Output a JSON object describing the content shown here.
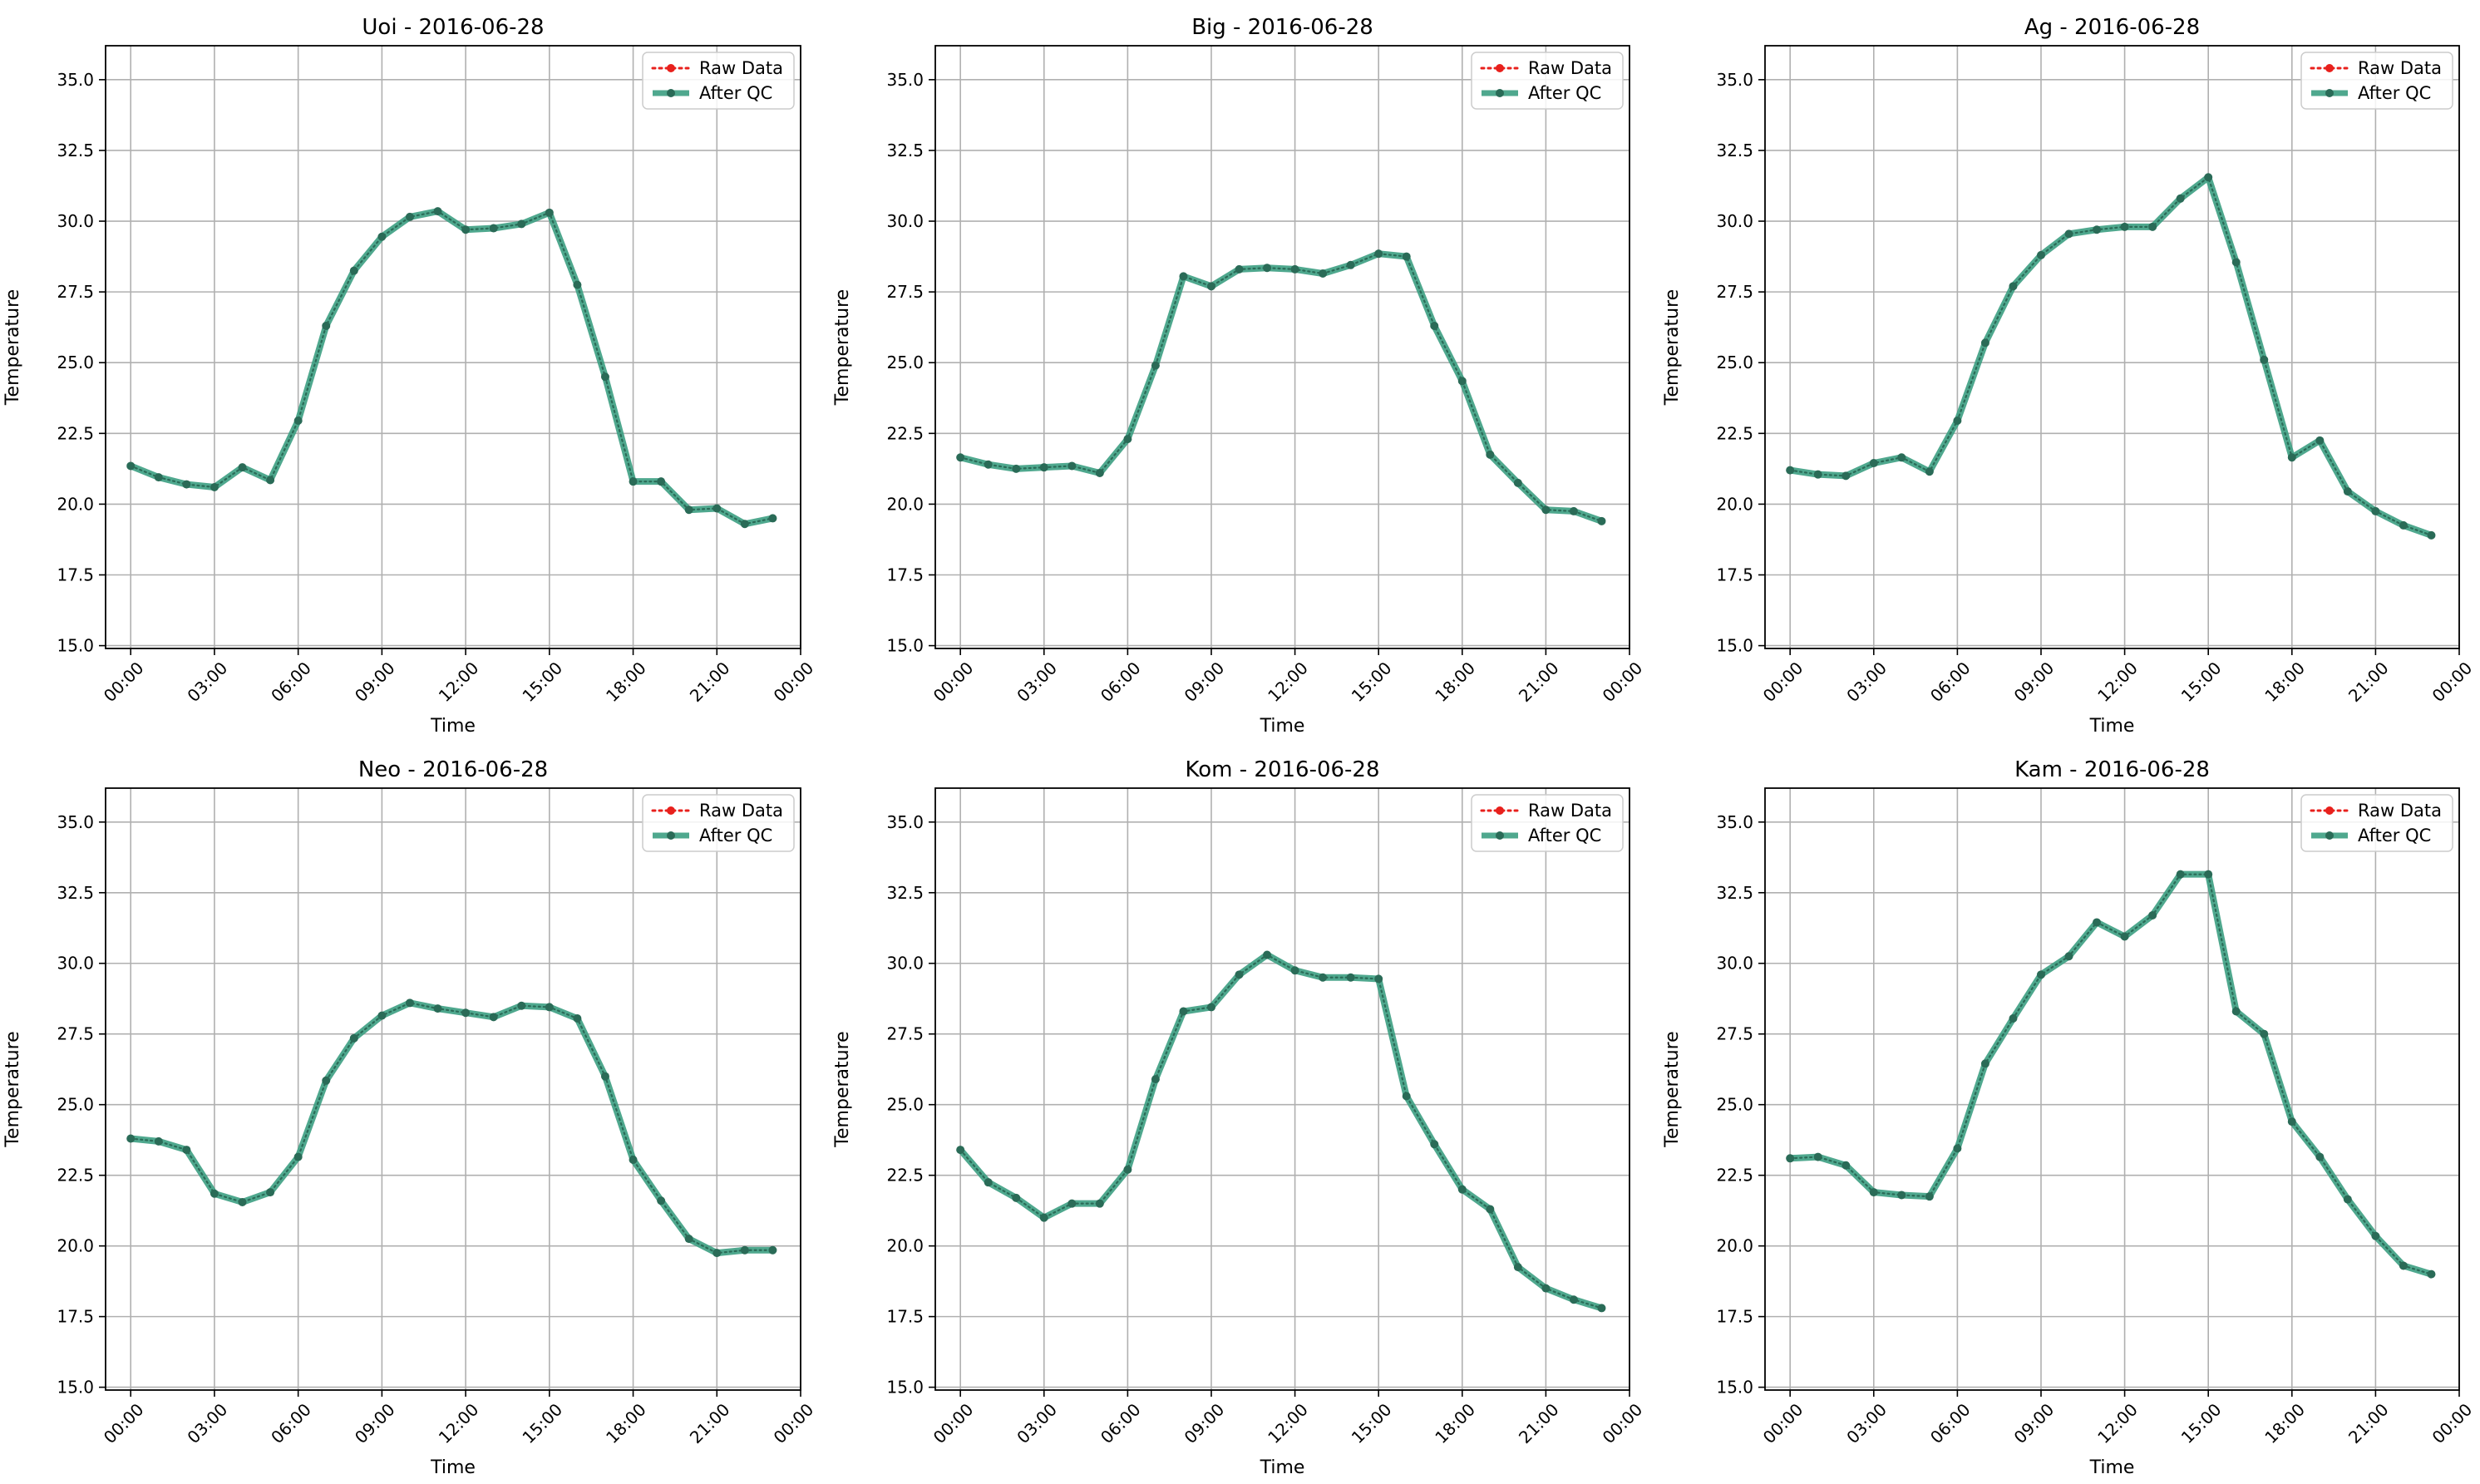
{
  "figure": {
    "subplot_titles": [
      "Uoi - 2016-06-28",
      "Big - 2016-06-28",
      "Ag - 2016-06-28",
      "Neo - 2016-06-28",
      "Kom - 2016-06-28",
      "Kam - 2016-06-28"
    ]
  },
  "colors": {
    "raw": "#e8201c",
    "qc": "#3c9e82",
    "qc_marker": "#2a6b57",
    "grid": "#b0b0b0"
  },
  "chart_data": [
    {
      "type": "line",
      "title": "Uoi - 2016-06-28",
      "xlabel": "Time",
      "ylabel": "Temperature",
      "xlim": [
        -0.9,
        24.0
      ],
      "ylim": [
        14.9,
        36.2
      ],
      "x_ticks": [
        "00:00",
        "03:00",
        "06:00",
        "09:00",
        "12:00",
        "15:00",
        "18:00",
        "21:00",
        "00:00"
      ],
      "y_ticks": [
        "15.0",
        "17.5",
        "20.0",
        "22.5",
        "25.0",
        "27.5",
        "30.0",
        "32.5",
        "35.0"
      ],
      "grid": true,
      "legend": "top-right",
      "x": [
        0,
        1,
        2,
        3,
        4,
        5,
        6,
        7,
        8,
        9,
        10,
        11,
        12,
        13,
        14,
        15,
        16,
        17,
        18,
        19,
        20,
        21,
        22,
        23
      ],
      "series": [
        {
          "name": "Raw Data",
          "style": "dotted",
          "values": [
            21.35,
            20.95,
            20.7,
            20.6,
            21.3,
            20.85,
            22.95,
            26.3,
            28.25,
            29.45,
            30.15,
            30.35,
            29.7,
            29.75,
            29.9,
            30.3,
            27.75,
            24.5,
            20.8,
            20.8,
            19.8,
            19.85,
            19.3,
            19.5
          ]
        },
        {
          "name": "After QC",
          "style": "solid",
          "values": [
            21.35,
            20.95,
            20.7,
            20.6,
            21.3,
            20.85,
            22.95,
            26.3,
            28.25,
            29.45,
            30.15,
            30.35,
            29.7,
            29.75,
            29.9,
            30.3,
            27.75,
            24.5,
            20.8,
            20.8,
            19.8,
            19.85,
            19.3,
            19.5
          ]
        }
      ]
    },
    {
      "type": "line",
      "title": "Big - 2016-06-28",
      "xlabel": "Time",
      "ylabel": "Temperature",
      "xlim": [
        -0.9,
        24.0
      ],
      "ylim": [
        14.9,
        36.2
      ],
      "x_ticks": [
        "00:00",
        "03:00",
        "06:00",
        "09:00",
        "12:00",
        "15:00",
        "18:00",
        "21:00",
        "00:00"
      ],
      "y_ticks": [
        "15.0",
        "17.5",
        "20.0",
        "22.5",
        "25.0",
        "27.5",
        "30.0",
        "32.5",
        "35.0"
      ],
      "grid": true,
      "legend": "top-right",
      "x": [
        0,
        1,
        2,
        3,
        4,
        5,
        6,
        7,
        8,
        9,
        10,
        11,
        12,
        13,
        14,
        15,
        16,
        17,
        18,
        19,
        20,
        21,
        22,
        23
      ],
      "series": [
        {
          "name": "Raw Data",
          "style": "dotted",
          "values": [
            21.65,
            21.4,
            21.25,
            21.3,
            21.35,
            21.1,
            22.3,
            24.9,
            28.05,
            27.7,
            28.3,
            28.35,
            28.3,
            28.15,
            28.45,
            28.85,
            28.75,
            26.3,
            24.35,
            21.75,
            20.75,
            19.8,
            19.75,
            19.4
          ]
        },
        {
          "name": "After QC",
          "style": "solid",
          "values": [
            21.65,
            21.4,
            21.25,
            21.3,
            21.35,
            21.1,
            22.3,
            24.9,
            28.05,
            27.7,
            28.3,
            28.35,
            28.3,
            28.15,
            28.45,
            28.85,
            28.75,
            26.3,
            24.35,
            21.75,
            20.75,
            19.8,
            19.75,
            19.4
          ]
        }
      ]
    },
    {
      "type": "line",
      "title": "Ag - 2016-06-28",
      "xlabel": "Time",
      "ylabel": "Temperature",
      "xlim": [
        -0.9,
        24.0
      ],
      "ylim": [
        14.9,
        36.2
      ],
      "x_ticks": [
        "00:00",
        "03:00",
        "06:00",
        "09:00",
        "12:00",
        "15:00",
        "18:00",
        "21:00",
        "00:00"
      ],
      "y_ticks": [
        "15.0",
        "17.5",
        "20.0",
        "22.5",
        "25.0",
        "27.5",
        "30.0",
        "32.5",
        "35.0"
      ],
      "grid": true,
      "legend": "top-right",
      "x": [
        0,
        1,
        2,
        3,
        4,
        5,
        6,
        7,
        8,
        9,
        10,
        11,
        12,
        13,
        14,
        15,
        16,
        17,
        18,
        19,
        20,
        21,
        22,
        23
      ],
      "series": [
        {
          "name": "Raw Data",
          "style": "dotted",
          "values": [
            21.2,
            21.05,
            21.0,
            21.45,
            21.65,
            21.15,
            22.95,
            25.7,
            27.7,
            28.8,
            29.55,
            29.7,
            29.8,
            29.8,
            30.8,
            31.55,
            28.55,
            25.1,
            21.65,
            22.25,
            20.45,
            19.75,
            19.25,
            18.9
          ]
        },
        {
          "name": "After QC",
          "style": "solid",
          "values": [
            21.2,
            21.05,
            21.0,
            21.45,
            21.65,
            21.15,
            22.95,
            25.7,
            27.7,
            28.8,
            29.55,
            29.7,
            29.8,
            29.8,
            30.8,
            31.55,
            28.55,
            25.1,
            21.65,
            22.25,
            20.45,
            19.75,
            19.25,
            18.9
          ]
        }
      ]
    },
    {
      "type": "line",
      "title": "Neo - 2016-06-28",
      "xlabel": "Time",
      "ylabel": "Temperature",
      "xlim": [
        -0.9,
        24.0
      ],
      "ylim": [
        14.9,
        36.2
      ],
      "x_ticks": [
        "00:00",
        "03:00",
        "06:00",
        "09:00",
        "12:00",
        "15:00",
        "18:00",
        "21:00",
        "00:00"
      ],
      "y_ticks": [
        "15.0",
        "17.5",
        "20.0",
        "22.5",
        "25.0",
        "27.5",
        "30.0",
        "32.5",
        "35.0"
      ],
      "grid": true,
      "legend": "top-right",
      "x": [
        0,
        1,
        2,
        3,
        4,
        5,
        6,
        7,
        8,
        9,
        10,
        11,
        12,
        13,
        14,
        15,
        16,
        17,
        18,
        19,
        20,
        21,
        22,
        23
      ],
      "series": [
        {
          "name": "Raw Data",
          "style": "dotted",
          "values": [
            23.8,
            23.7,
            23.4,
            21.85,
            21.55,
            21.9,
            23.15,
            25.85,
            27.35,
            28.15,
            28.6,
            28.4,
            28.25,
            28.1,
            28.5,
            28.45,
            28.05,
            26.0,
            23.05,
            21.6,
            20.25,
            19.75,
            19.85,
            19.85
          ]
        },
        {
          "name": "After QC",
          "style": "solid",
          "values": [
            23.8,
            23.7,
            23.4,
            21.85,
            21.55,
            21.9,
            23.15,
            25.85,
            27.35,
            28.15,
            28.6,
            28.4,
            28.25,
            28.1,
            28.5,
            28.45,
            28.05,
            26.0,
            23.05,
            21.6,
            20.25,
            19.75,
            19.85,
            19.85
          ]
        }
      ]
    },
    {
      "type": "line",
      "title": "Kom - 2016-06-28",
      "xlabel": "Time",
      "ylabel": "Temperature",
      "xlim": [
        -0.9,
        24.0
      ],
      "ylim": [
        14.9,
        36.2
      ],
      "x_ticks": [
        "00:00",
        "03:00",
        "06:00",
        "09:00",
        "12:00",
        "15:00",
        "18:00",
        "21:00",
        "00:00"
      ],
      "y_ticks": [
        "15.0",
        "17.5",
        "20.0",
        "22.5",
        "25.0",
        "27.5",
        "30.0",
        "32.5",
        "35.0"
      ],
      "grid": true,
      "legend": "top-right",
      "x": [
        0,
        1,
        2,
        3,
        4,
        5,
        6,
        7,
        8,
        9,
        10,
        11,
        12,
        13,
        14,
        15,
        16,
        17,
        18,
        19,
        20,
        21,
        22,
        23
      ],
      "series": [
        {
          "name": "Raw Data",
          "style": "dotted",
          "values": [
            23.4,
            22.25,
            21.7,
            21.0,
            21.5,
            21.5,
            22.7,
            25.9,
            28.3,
            28.45,
            29.6,
            30.3,
            29.75,
            29.5,
            29.5,
            29.45,
            25.3,
            23.6,
            22.0,
            21.3,
            19.25,
            18.5,
            18.1,
            17.8
          ]
        },
        {
          "name": "After QC",
          "style": "solid",
          "values": [
            23.4,
            22.25,
            21.7,
            21.0,
            21.5,
            21.5,
            22.7,
            25.9,
            28.3,
            28.45,
            29.6,
            30.3,
            29.75,
            29.5,
            29.5,
            29.45,
            25.3,
            23.6,
            22.0,
            21.3,
            19.25,
            18.5,
            18.1,
            17.8
          ]
        }
      ]
    },
    {
      "type": "line",
      "title": "Kam - 2016-06-28",
      "xlabel": "Time",
      "ylabel": "Temperature",
      "xlim": [
        -0.9,
        24.0
      ],
      "ylim": [
        14.9,
        36.2
      ],
      "x_ticks": [
        "00:00",
        "03:00",
        "06:00",
        "09:00",
        "12:00",
        "15:00",
        "18:00",
        "21:00",
        "00:00"
      ],
      "y_ticks": [
        "15.0",
        "17.5",
        "20.0",
        "22.5",
        "25.0",
        "27.5",
        "30.0",
        "32.5",
        "35.0"
      ],
      "grid": true,
      "legend": "top-right",
      "x": [
        0,
        1,
        2,
        3,
        4,
        5,
        6,
        7,
        8,
        9,
        10,
        11,
        12,
        13,
        14,
        15,
        16,
        17,
        18,
        19,
        20,
        21,
        22,
        23
      ],
      "series": [
        {
          "name": "Raw Data",
          "style": "dotted",
          "values": [
            23.1,
            23.15,
            22.85,
            21.9,
            21.8,
            21.75,
            23.45,
            26.45,
            28.05,
            29.6,
            30.25,
            31.45,
            30.95,
            31.7,
            33.15,
            33.15,
            28.3,
            27.5,
            24.4,
            23.15,
            21.65,
            20.35,
            19.3,
            19.0
          ]
        },
        {
          "name": "After QC",
          "style": "solid",
          "values": [
            23.1,
            23.15,
            22.85,
            21.9,
            21.8,
            21.75,
            23.45,
            26.45,
            28.05,
            29.6,
            30.25,
            31.45,
            30.95,
            31.7,
            33.15,
            33.15,
            28.3,
            27.5,
            24.4,
            23.15,
            21.65,
            20.35,
            19.3,
            19.0
          ]
        }
      ]
    }
  ]
}
